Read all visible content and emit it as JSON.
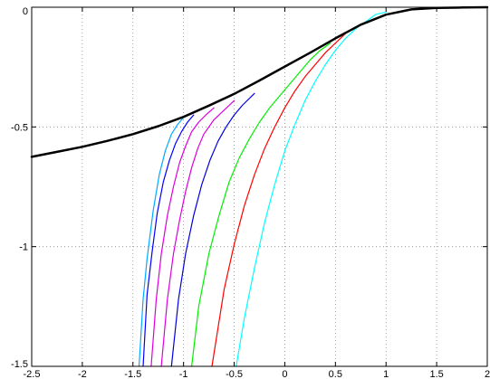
{
  "chart_data": {
    "type": "line",
    "title": "",
    "xlabel": "",
    "ylabel": "",
    "xlim": [
      -2.5,
      2
    ],
    "ylim": [
      -1.5,
      0
    ],
    "grid": true,
    "grid_style": "dotted",
    "legend": false,
    "x_ticks": [
      {
        "value": -2.5,
        "label": "-2.5"
      },
      {
        "value": -2,
        "label": "-2"
      },
      {
        "value": -1.5,
        "label": "-1.5"
      },
      {
        "value": -1,
        "label": "-1"
      },
      {
        "value": -0.5,
        "label": "-0.5"
      },
      {
        "value": 0,
        "label": "0"
      },
      {
        "value": 0.5,
        "label": "0.5"
      },
      {
        "value": 1,
        "label": "1"
      },
      {
        "value": 1.5,
        "label": "1.5"
      },
      {
        "value": 2,
        "label": "2"
      }
    ],
    "y_ticks": [
      {
        "value": 0,
        "label": "0"
      },
      {
        "value": -0.5,
        "label": "-0.5"
      },
      {
        "value": -1,
        "label": "-1"
      },
      {
        "value": -1.5,
        "label": "-1.5"
      }
    ],
    "series": [
      {
        "color": "#000000",
        "line_width": 2.5,
        "x": [
          -2.5,
          -2.25,
          -2.0,
          -1.75,
          -1.5,
          -1.25,
          -1.0,
          -0.75,
          -0.5,
          -0.25,
          0.0,
          0.25,
          0.5,
          0.75,
          1.0,
          1.25,
          1.5,
          1.75,
          2.0
        ],
        "y": [
          -0.625,
          -0.604,
          -0.583,
          -0.558,
          -0.53,
          -0.497,
          -0.458,
          -0.411,
          -0.362,
          -0.306,
          -0.248,
          -0.19,
          -0.13,
          -0.073,
          -0.031,
          -0.009,
          -0.003,
          -0.001,
          0.0
        ]
      },
      {
        "color": "#00ffff",
        "line_width": 1.2,
        "x": [
          -0.48,
          -0.4,
          -0.3,
          -0.2,
          -0.1,
          0.0,
          0.1,
          0.2,
          0.3,
          0.4,
          0.5,
          0.6,
          0.7,
          0.8,
          0.9,
          1.0
        ],
        "y": [
          -1.5,
          -1.3,
          -1.09,
          -0.9,
          -0.74,
          -0.6,
          -0.49,
          -0.39,
          -0.31,
          -0.24,
          -0.18,
          -0.13,
          -0.09,
          -0.06,
          -0.03,
          -0.02
        ]
      },
      {
        "color": "#ff0000",
        "line_width": 1.2,
        "x": [
          -0.72,
          -0.6,
          -0.5,
          -0.4,
          -0.3,
          -0.2,
          -0.1,
          0.0,
          0.1,
          0.2,
          0.3,
          0.4,
          0.5,
          0.6
        ],
        "y": [
          -1.5,
          -1.18,
          -0.99,
          -0.83,
          -0.7,
          -0.59,
          -0.5,
          -0.42,
          -0.35,
          -0.29,
          -0.24,
          -0.19,
          -0.15,
          -0.11
        ]
      },
      {
        "color": "#00ee00",
        "line_width": 1.2,
        "x": [
          -0.92,
          -0.85,
          -0.75,
          -0.65,
          -0.55,
          -0.45,
          -0.35,
          -0.25,
          -0.15,
          -0.05,
          0.05,
          0.15,
          0.25,
          0.35,
          0.45
        ],
        "y": [
          -1.5,
          -1.25,
          -1.03,
          -0.87,
          -0.73,
          -0.63,
          -0.55,
          -0.48,
          -0.42,
          -0.37,
          -0.32,
          -0.27,
          -0.22,
          -0.18,
          -0.15
        ]
      },
      {
        "color": "#0000dd",
        "line_width": 1.2,
        "x": [
          -1.12,
          -1.05,
          -0.98,
          -0.9,
          -0.82,
          -0.74,
          -0.66,
          -0.58,
          -0.5,
          -0.42,
          -0.3
        ],
        "y": [
          -1.5,
          -1.22,
          -1.03,
          -0.87,
          -0.74,
          -0.64,
          -0.56,
          -0.5,
          -0.45,
          -0.41,
          -0.36
        ]
      },
      {
        "color": "#dd00dd",
        "line_width": 1.2,
        "x": [
          -1.22,
          -1.16,
          -1.1,
          -1.04,
          -0.98,
          -0.92,
          -0.86,
          -0.8,
          -0.7,
          -0.6,
          -0.5
        ],
        "y": [
          -1.5,
          -1.22,
          -1.03,
          -0.89,
          -0.77,
          -0.67,
          -0.59,
          -0.53,
          -0.47,
          -0.43,
          -0.39
        ]
      },
      {
        "color": "#dd00dd",
        "line_width": 1.2,
        "x": [
          -1.32,
          -1.27,
          -1.22,
          -1.16,
          -1.1,
          -1.04,
          -0.98,
          -0.92,
          -0.85,
          -0.78,
          -0.7
        ],
        "y": [
          -1.5,
          -1.22,
          -1.03,
          -0.87,
          -0.75,
          -0.65,
          -0.58,
          -0.52,
          -0.48,
          -0.45,
          -0.42
        ]
      },
      {
        "color": "#0000ff",
        "line_width": 1.2,
        "x": [
          -1.4,
          -1.36,
          -1.31,
          -1.26,
          -1.2,
          -1.14,
          -1.08,
          -1.02,
          -0.96,
          -0.9
        ],
        "y": [
          -1.5,
          -1.2,
          -1.02,
          -0.86,
          -0.73,
          -0.64,
          -0.57,
          -0.52,
          -0.48,
          -0.45
        ]
      },
      {
        "color": "#00aaff",
        "line_width": 1.2,
        "x": [
          -1.44,
          -1.4,
          -1.36,
          -1.3,
          -1.24,
          -1.18,
          -1.12,
          -1.06,
          -1.0
        ],
        "y": [
          -1.5,
          -1.22,
          -1.05,
          -0.85,
          -0.7,
          -0.6,
          -0.53,
          -0.49,
          -0.46
        ]
      }
    ]
  }
}
